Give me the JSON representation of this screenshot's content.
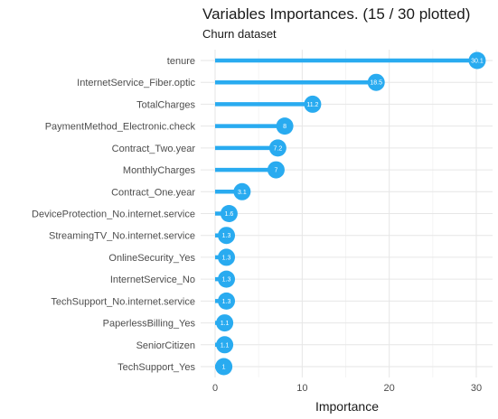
{
  "chart_data": {
    "type": "lollipop",
    "title": "Variables Importances. (15 / 30 plotted)",
    "subtitle": "Churn dataset",
    "xlabel": "Importance",
    "xlim": [
      0,
      31.5
    ],
    "xticks": [
      0,
      10,
      20,
      30
    ],
    "grid": true,
    "color": "#29ABF0",
    "categories": [
      "tenure",
      "InternetService_Fiber.optic",
      "TotalCharges",
      "PaymentMethod_Electronic.check",
      "Contract_Two.year",
      "MonthlyCharges",
      "Contract_One.year",
      "DeviceProtection_No.internet.service",
      "StreamingTV_No.internet.service",
      "OnlineSecurity_Yes",
      "InternetService_No",
      "TechSupport_No.internet.service",
      "PaperlessBilling_Yes",
      "SeniorCitizen",
      "TechSupport_Yes"
    ],
    "values": [
      30.1,
      18.5,
      11.2,
      8,
      7.2,
      7,
      3.1,
      1.6,
      1.3,
      1.3,
      1.3,
      1.3,
      1.1,
      1.1,
      1
    ],
    "value_labels": [
      "30.1",
      "18.5",
      "11.2",
      "8",
      "7.2",
      "7",
      "3.1",
      "1.6",
      "1.3",
      "1.3",
      "1.3",
      "1.3",
      "1.1",
      "1.1",
      "1"
    ]
  }
}
